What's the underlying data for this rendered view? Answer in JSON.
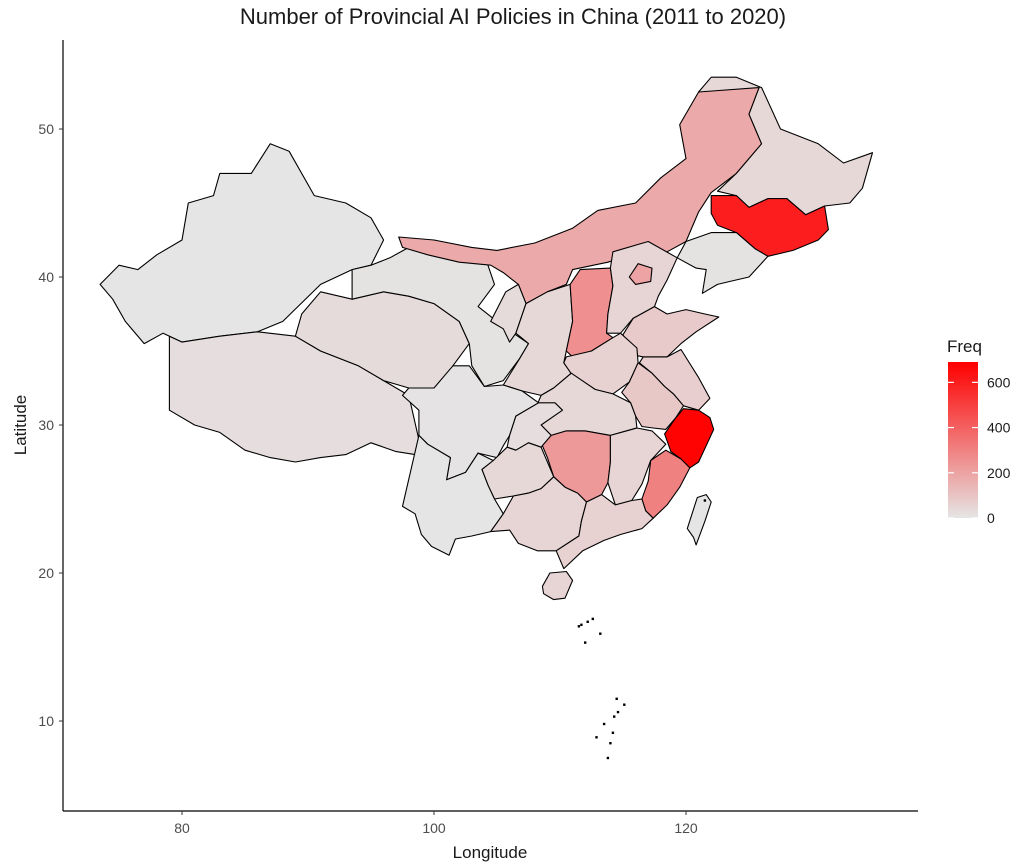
{
  "title": "Number of Provincial AI Policies in China (2011 to 2020)",
  "chart_data": {
    "type": "choropleth",
    "title": "Number of Provincial AI Policies in China (2011 to 2020)",
    "xlabel": "Longitude",
    "ylabel": "Latitude",
    "xlim": [
      70.5,
      136.5
    ],
    "ylim": [
      4,
      56
    ],
    "x_ticks": [
      80,
      100,
      120
    ],
    "y_ticks": [
      10,
      20,
      30,
      40,
      50
    ],
    "legend": {
      "title": "Freq",
      "placement": "right",
      "range": [
        0,
        690
      ],
      "ticks": [
        0,
        200,
        400,
        600
      ],
      "low_color": "#e5e5e5",
      "high_color": "#ff0000"
    },
    "regions": [
      {
        "name": "Xinjiang",
        "value": 0
      },
      {
        "name": "Tibet",
        "value": 20
      },
      {
        "name": "Qinghai",
        "value": 30
      },
      {
        "name": "Gansu",
        "value": 10
      },
      {
        "name": "Inner Mongolia",
        "value": 180
      },
      {
        "name": "Heilongjiang",
        "value": 40
      },
      {
        "name": "Jilin",
        "value": 600
      },
      {
        "name": "Liaoning",
        "value": 10
      },
      {
        "name": "Ningxia",
        "value": 30
      },
      {
        "name": "Shaanxi",
        "value": 40
      },
      {
        "name": "Shanxi",
        "value": 260
      },
      {
        "name": "Hebei",
        "value": 50
      },
      {
        "name": "Beijing",
        "value": 200
      },
      {
        "name": "Shandong",
        "value": 80
      },
      {
        "name": "Henan",
        "value": 60
      },
      {
        "name": "Jiangsu",
        "value": 70
      },
      {
        "name": "Anhui",
        "value": 90
      },
      {
        "name": "Hubei",
        "value": 40
      },
      {
        "name": "Sichuan",
        "value": 5
      },
      {
        "name": "Chongqing",
        "value": 20
      },
      {
        "name": "Hunan",
        "value": 230
      },
      {
        "name": "Jiangxi",
        "value": 50
      },
      {
        "name": "Zhejiang",
        "value": 680
      },
      {
        "name": "Fujian",
        "value": 300
      },
      {
        "name": "Guizhou",
        "value": 40
      },
      {
        "name": "Yunnan",
        "value": 0
      },
      {
        "name": "Guangxi",
        "value": 50
      },
      {
        "name": "Guangdong",
        "value": 60
      },
      {
        "name": "Hainan",
        "value": 50
      },
      {
        "name": "Taiwan",
        "value": 0
      }
    ]
  }
}
